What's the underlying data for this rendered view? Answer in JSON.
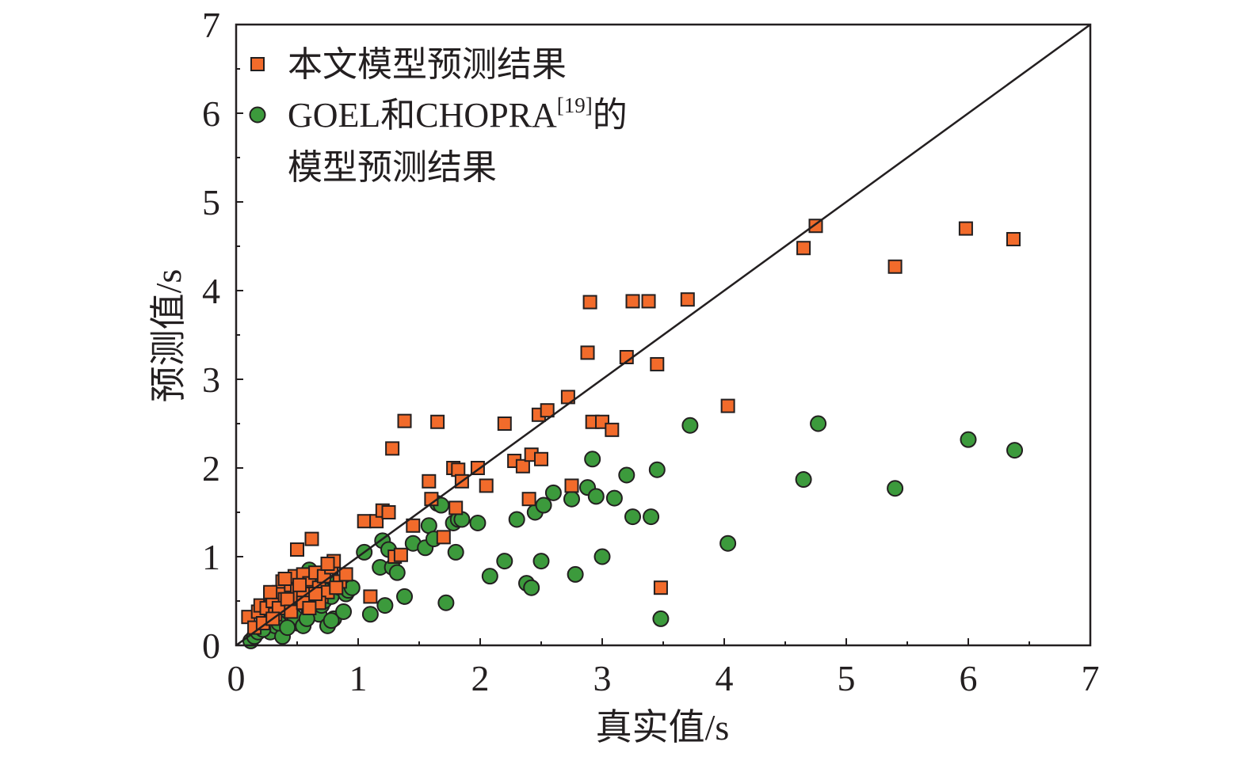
{
  "chart_data": {
    "type": "scatter",
    "xlabel": "真实值/s",
    "ylabel": "预测值/s",
    "xlim": [
      0,
      7
    ],
    "ylim": [
      0,
      7
    ],
    "xticks": [
      "0",
      "1",
      "2",
      "3",
      "4",
      "5",
      "6",
      "7"
    ],
    "yticks": [
      "0",
      "1",
      "2",
      "3",
      "4",
      "5",
      "6",
      "7"
    ],
    "grid": false,
    "legend_position": "top-left",
    "reference_line": {
      "x": [
        0,
        7
      ],
      "y": [
        0,
        7
      ]
    },
    "series": [
      {
        "name": "本文模型预测结果",
        "marker": "square",
        "color": "#f26b2b",
        "x": [
          0.1,
          0.15,
          0.18,
          0.2,
          0.22,
          0.25,
          0.28,
          0.3,
          0.32,
          0.35,
          0.38,
          0.4,
          0.42,
          0.45,
          0.48,
          0.5,
          0.52,
          0.55,
          0.58,
          0.6,
          0.62,
          0.65,
          0.68,
          0.7,
          0.72,
          0.75,
          0.78,
          0.8,
          0.85,
          0.9,
          0.28,
          0.35,
          0.42,
          0.5,
          0.55,
          0.62,
          0.68,
          0.75,
          0.82,
          0.3,
          0.45,
          0.55,
          0.6,
          0.4,
          0.65,
          0.52,
          1.05,
          1.1,
          1.15,
          1.2,
          1.25,
          1.28,
          1.3,
          1.35,
          1.38,
          1.45,
          1.58,
          1.6,
          1.65,
          1.7,
          1.78,
          1.8,
          1.82,
          1.85,
          1.98,
          2.05,
          2.2,
          2.28,
          2.35,
          2.4,
          2.42,
          2.48,
          2.5,
          2.55,
          2.72,
          2.75,
          2.88,
          2.9,
          2.92,
          3.0,
          3.08,
          3.2,
          3.25,
          3.38,
          3.45,
          3.48,
          3.7,
          4.03,
          4.65,
          4.75,
          5.4,
          5.98,
          6.37
        ],
        "y": [
          0.32,
          0.2,
          0.38,
          0.45,
          0.25,
          0.42,
          0.58,
          0.5,
          0.35,
          0.6,
          0.72,
          0.52,
          0.45,
          0.68,
          0.78,
          0.62,
          0.55,
          0.8,
          0.48,
          0.7,
          0.6,
          0.82,
          0.65,
          0.55,
          0.78,
          0.6,
          0.88,
          0.95,
          0.72,
          0.8,
          0.6,
          0.42,
          0.52,
          1.08,
          0.58,
          1.2,
          0.48,
          0.92,
          0.65,
          0.3,
          0.38,
          0.48,
          0.42,
          0.75,
          0.58,
          0.68,
          1.4,
          0.55,
          1.4,
          1.52,
          1.5,
          2.22,
          1.0,
          1.02,
          2.53,
          1.35,
          1.85,
          1.65,
          2.52,
          1.22,
          2.0,
          1.55,
          1.98,
          1.85,
          2.0,
          1.8,
          2.5,
          2.08,
          2.02,
          1.65,
          2.15,
          2.6,
          2.1,
          2.65,
          2.8,
          1.8,
          3.3,
          3.87,
          2.52,
          2.52,
          2.43,
          3.25,
          3.88,
          3.88,
          3.17,
          0.65,
          3.9,
          2.7,
          4.48,
          4.73,
          4.27,
          4.7,
          4.58
        ]
      },
      {
        "name": "GOEL和CHOPRA[19]的模型预测结果",
        "marker": "circle",
        "color": "#3c9a3c",
        "x": [
          0.12,
          0.15,
          0.18,
          0.2,
          0.22,
          0.25,
          0.28,
          0.3,
          0.32,
          0.35,
          0.38,
          0.4,
          0.42,
          0.45,
          0.48,
          0.5,
          0.52,
          0.55,
          0.58,
          0.6,
          0.62,
          0.65,
          0.68,
          0.7,
          0.72,
          0.75,
          0.78,
          0.8,
          0.82,
          0.85,
          0.88,
          0.9,
          0.92,
          0.95,
          0.22,
          0.35,
          0.48,
          0.55,
          0.65,
          0.72,
          0.3,
          0.42,
          0.58,
          0.78,
          0.6,
          1.05,
          1.1,
          1.18,
          1.2,
          1.22,
          1.25,
          1.28,
          1.32,
          1.38,
          1.45,
          1.55,
          1.58,
          1.62,
          1.65,
          1.68,
          1.72,
          1.78,
          1.8,
          1.82,
          1.85,
          1.98,
          2.08,
          2.2,
          2.3,
          2.38,
          2.42,
          2.45,
          2.5,
          2.52,
          2.6,
          2.75,
          2.78,
          2.88,
          2.92,
          2.95,
          3.0,
          3.1,
          3.2,
          3.25,
          3.4,
          3.45,
          3.48,
          3.72,
          4.03,
          4.65,
          4.77,
          5.4,
          6.0,
          6.38
        ],
        "y": [
          0.05,
          0.1,
          0.15,
          0.2,
          0.18,
          0.25,
          0.15,
          0.3,
          0.22,
          0.28,
          0.1,
          0.35,
          0.42,
          0.45,
          0.3,
          0.25,
          0.5,
          0.48,
          0.55,
          0.38,
          0.42,
          0.6,
          0.35,
          0.45,
          0.5,
          0.22,
          0.55,
          0.3,
          0.7,
          0.65,
          0.38,
          0.58,
          0.62,
          0.65,
          0.18,
          0.25,
          0.32,
          0.22,
          0.8,
          0.62,
          0.35,
          0.2,
          0.3,
          0.28,
          0.85,
          1.05,
          0.35,
          0.88,
          1.18,
          0.45,
          1.08,
          0.88,
          0.82,
          0.55,
          1.15,
          1.1,
          1.35,
          1.2,
          1.6,
          1.58,
          0.48,
          1.38,
          1.05,
          1.42,
          1.42,
          1.38,
          0.78,
          0.95,
          1.42,
          0.7,
          0.65,
          1.5,
          0.95,
          1.58,
          1.72,
          1.65,
          0.8,
          1.78,
          2.1,
          1.68,
          1.0,
          1.66,
          1.92,
          1.45,
          1.45,
          1.98,
          0.3,
          2.48,
          1.15,
          1.87,
          2.5,
          1.77,
          2.32,
          2.2
        ]
      }
    ]
  },
  "legend": {
    "square_label": "本文模型预测结果",
    "circle_label_main": "GOEL和CHOPRA",
    "circle_label_sup": "[19]",
    "circle_label_suffix": "的",
    "circle_label_line2": "模型预测结果"
  }
}
